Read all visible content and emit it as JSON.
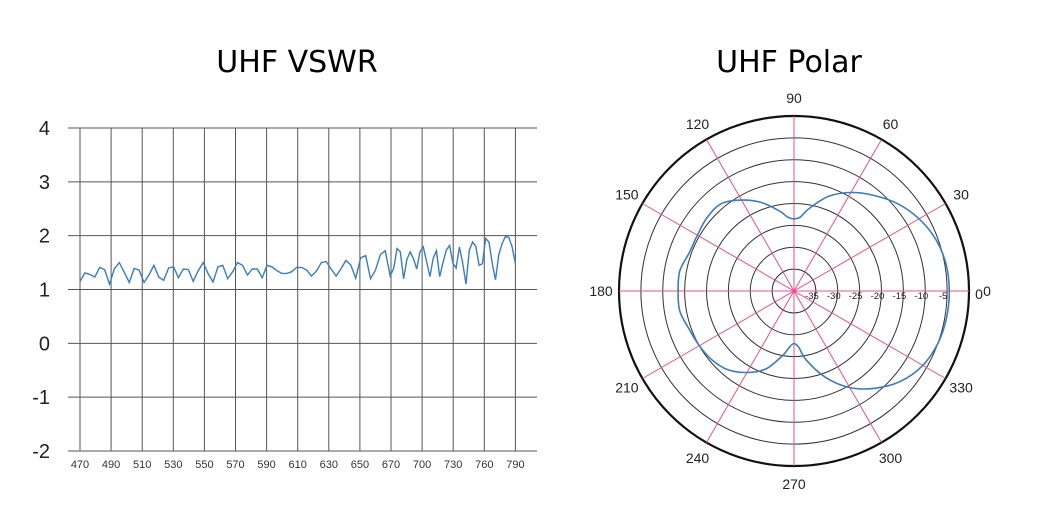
{
  "chart_data": [
    {
      "type": "line",
      "title": "UHF VSWR",
      "xlabel": "",
      "ylabel": "",
      "x_tick_labels": [
        "470",
        "490",
        "510",
        "530",
        "550",
        "570",
        "590",
        "610",
        "630",
        "650",
        "670",
        "700",
        "730",
        "760",
        "790"
      ],
      "y_ticks": [
        4,
        3,
        2,
        1,
        0,
        -1,
        -2
      ],
      "ylim": [
        -2,
        4
      ],
      "grid": true,
      "series_color": "#3a7dc0",
      "series": [
        {
          "x": [
            470.0,
            473.2,
            476.3,
            479.5,
            482.7,
            485.8,
            489.0,
            492.2,
            495.3,
            498.5,
            501.7,
            504.8,
            508.0,
            511.2,
            514.3,
            517.5,
            520.7,
            523.8,
            527.0,
            530.2,
            533.3,
            536.5,
            539.7,
            542.8,
            546.0,
            549.2,
            552.3,
            555.5,
            558.7,
            561.8,
            565.0,
            568.2,
            571.3,
            574.5,
            577.7,
            580.8,
            584.0,
            587.2,
            590.3,
            593.5,
            596.7,
            599.8,
            603.0,
            606.2,
            609.3,
            612.5,
            615.7,
            618.8,
            622.0,
            625.2,
            628.3,
            631.5,
            634.7,
            637.8,
            641.0,
            644.2,
            647.3,
            650.5,
            653.7,
            656.8,
            660.0,
            663.2,
            666.3,
            669.5,
            672.7,
            675.8,
            679.0,
            682.2,
            685.3,
            688.5,
            691.7,
            694.8,
            698.0,
            701.2,
            704.3,
            707.5,
            710.7,
            713.8,
            717.0,
            720.2,
            723.3,
            726.5,
            729.7,
            732.8,
            736.0,
            739.2,
            742.3,
            745.5,
            748.7,
            751.8,
            755.0,
            758.2,
            761.3,
            764.5,
            767.7,
            770.8,
            774.0,
            777.2,
            780.3,
            783.5,
            786.7,
            789.8,
            790.0
          ],
          "y": [
            1.15,
            1.31,
            1.28,
            1.23,
            1.41,
            1.37,
            1.1,
            1.39,
            1.5,
            1.32,
            1.13,
            1.39,
            1.36,
            1.13,
            1.27,
            1.45,
            1.23,
            1.17,
            1.4,
            1.42,
            1.22,
            1.38,
            1.37,
            1.15,
            1.35,
            1.5,
            1.3,
            1.14,
            1.42,
            1.45,
            1.2,
            1.33,
            1.5,
            1.45,
            1.27,
            1.38,
            1.38,
            1.22,
            1.45,
            1.42,
            1.35,
            1.3,
            1.3,
            1.33,
            1.41,
            1.41,
            1.36,
            1.25,
            1.34,
            1.5,
            1.52,
            1.38,
            1.25,
            1.38,
            1.54,
            1.45,
            1.21,
            1.59,
            1.63,
            1.2,
            1.36,
            1.65,
            1.72,
            1.25,
            1.4,
            1.76,
            1.7,
            1.2,
            1.56,
            1.7,
            1.57,
            1.38,
            1.7,
            1.79,
            1.52,
            1.24,
            1.58,
            1.72,
            1.24,
            1.5,
            1.73,
            1.82,
            1.49,
            1.4,
            1.79,
            1.49,
            1.1,
            1.73,
            1.88,
            1.8,
            1.45,
            1.48,
            1.95,
            1.88,
            1.48,
            1.18,
            1.65,
            1.85,
            1.98,
            1.97,
            1.8,
            1.5,
            1.5
          ]
        }
      ]
    },
    {
      "type": "polar",
      "title": "UHF Polar",
      "angle_labels": [
        "90",
        "60",
        "30",
        "0",
        "330",
        "300",
        "270",
        "240",
        "210",
        "180",
        "150",
        "120"
      ],
      "radial_tick_labels": [
        "-35",
        "-30",
        "-25",
        "-20",
        "-15",
        "-10",
        "-5",
        "0"
      ],
      "rlim": [
        -40,
        0
      ],
      "grid_color": "#e8508a",
      "ring_color": "#333333",
      "series_color": "#3a7dc0",
      "series": [
        {
          "theta_deg": [
            0,
            10,
            20,
            30,
            40,
            50,
            60,
            70,
            80,
            85,
            90,
            95,
            100,
            110,
            120,
            130,
            140,
            150,
            160,
            170,
            180,
            190,
            200,
            210,
            220,
            230,
            240,
            250,
            260,
            265,
            270,
            275,
            280,
            290,
            300,
            310,
            320,
            330,
            340,
            350
          ],
          "r_db": [
            -4.5,
            -4.7,
            -5.5,
            -7,
            -9,
            -11.5,
            -14,
            -17,
            -21,
            -23,
            -23.5,
            -23,
            -21.5,
            -18.5,
            -16,
            -14,
            -14,
            -14.5,
            -14.5,
            -13.5,
            -13.5,
            -13.5,
            -14.5,
            -15,
            -15.5,
            -16.5,
            -18.5,
            -21,
            -25,
            -27,
            -28,
            -27,
            -24,
            -19,
            -14.5,
            -11,
            -8,
            -6,
            -5,
            -4.6
          ]
        }
      ]
    }
  ]
}
